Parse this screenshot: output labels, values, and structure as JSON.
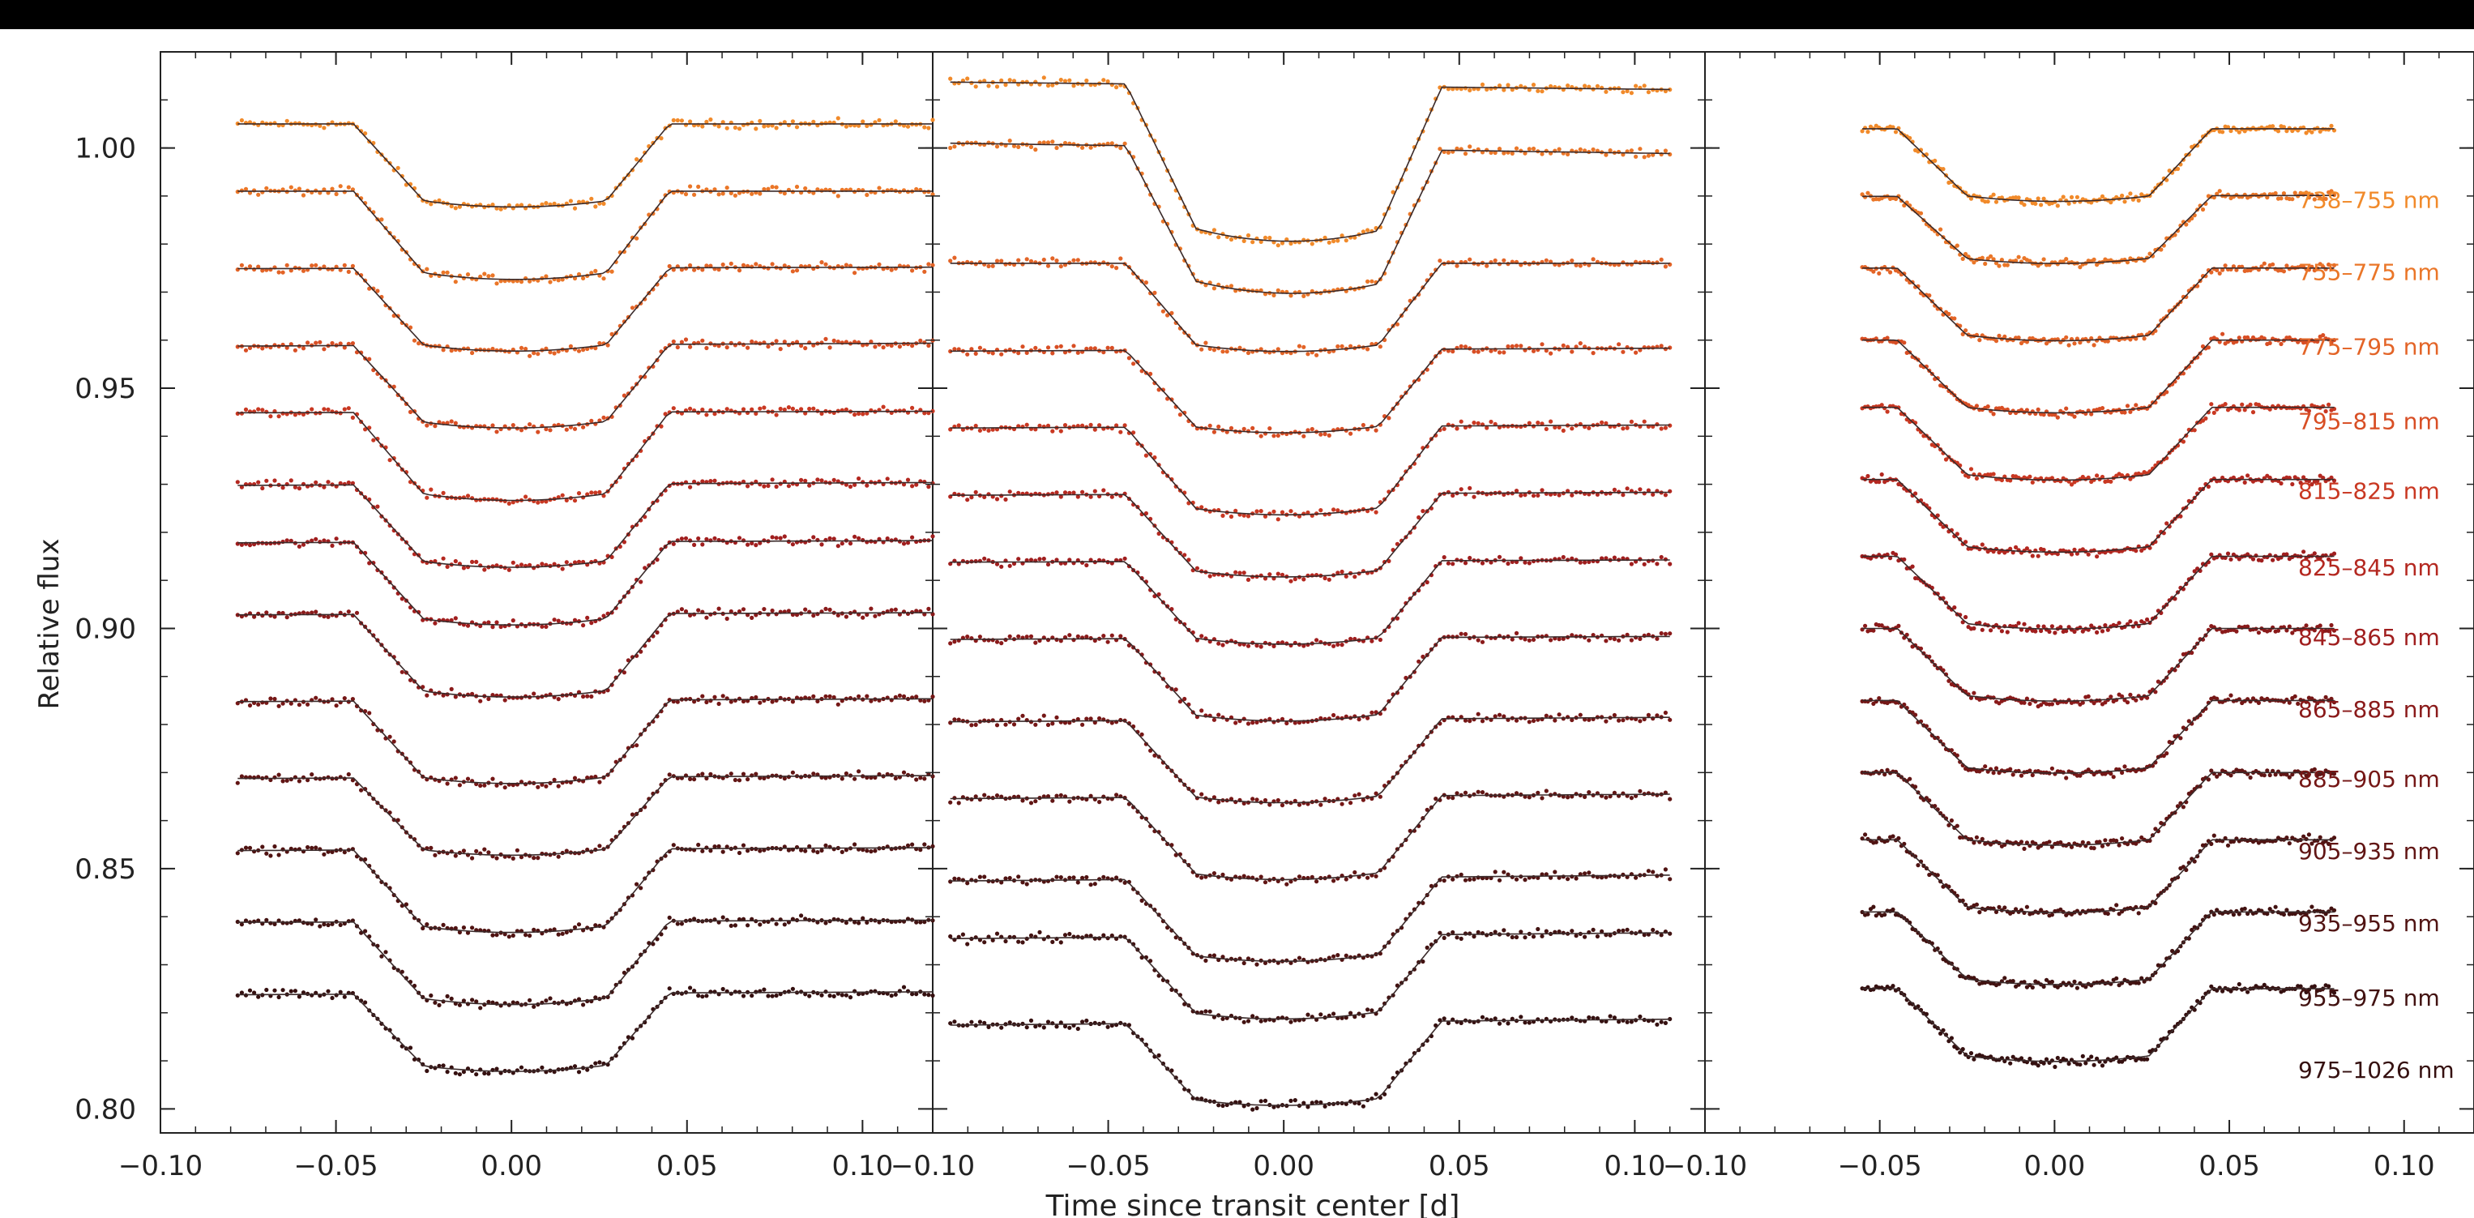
{
  "chart_data": {
    "type": "line",
    "xlabel": "Time since transit center [d]",
    "ylabel": "Relative flux",
    "ylim": [
      0.795,
      1.02
    ],
    "yticks": [
      1.0,
      0.95,
      0.9,
      0.85,
      0.8
    ],
    "ytick_labels": [
      "1.00",
      "0.95",
      "0.90",
      "0.85",
      "0.80"
    ],
    "panels": [
      {
        "xlim": [
          -0.1,
          0.12
        ],
        "xticks": [
          -0.1,
          -0.05,
          0.0,
          0.05,
          0.1
        ],
        "xtick_labels": [
          "−0.10",
          "−0.05",
          "0.00",
          "0.05",
          "0.10"
        ],
        "x_range": [
          -0.078,
          0.12
        ],
        "ingress": [
          -0.045,
          -0.025
        ],
        "egress": [
          0.027,
          0.045
        ],
        "baselines": [
          1.005,
          0.991,
          0.975,
          0.959,
          0.945,
          0.93,
          0.918,
          0.903,
          0.885,
          0.869,
          0.854,
          0.839,
          0.824
        ],
        "depths": [
          0.016,
          0.017,
          0.016,
          0.016,
          0.017,
          0.016,
          0.016,
          0.016,
          0.016,
          0.015,
          0.016,
          0.016,
          0.015
        ],
        "slopes": [
          0.0,
          0.0,
          0.01,
          0.02,
          0.01,
          0.02,
          0.015,
          0.015,
          0.02,
          0.02,
          0.02,
          0.015,
          0.02
        ]
      },
      {
        "xlim": [
          -0.1,
          0.12
        ],
        "xticks": [
          -0.1,
          -0.05,
          0.0,
          0.05,
          0.1
        ],
        "xtick_labels": [
          "−0.10",
          "−0.05",
          "0.00",
          "0.05",
          "0.10"
        ],
        "x_range": [
          -0.095,
          0.11
        ],
        "ingress": [
          -0.045,
          -0.025
        ],
        "egress": [
          0.027,
          0.045
        ],
        "baselines": [
          1.013,
          1.0,
          0.976,
          0.958,
          0.942,
          0.928,
          0.914,
          0.898,
          0.881,
          0.865,
          0.848,
          0.836,
          0.818
        ],
        "depths": [
          0.03,
          0.028,
          0.017,
          0.016,
          0.017,
          0.016,
          0.016,
          0.016,
          0.016,
          0.016,
          0.016,
          0.016,
          0.016
        ],
        "slopes": [
          -0.05,
          -0.07,
          0.0,
          0.02,
          0.02,
          0.02,
          0.015,
          0.02,
          0.03,
          0.03,
          0.04,
          0.04,
          0.04
        ]
      },
      {
        "xlim": [
          -0.1,
          0.12
        ],
        "xticks": [
          -0.1,
          -0.05,
          0.0,
          0.05,
          0.1
        ],
        "xtick_labels": [
          "−0.10",
          "−0.05",
          "0.00",
          "0.05",
          "0.10"
        ],
        "x_range": [
          -0.055,
          0.08
        ],
        "ingress": [
          -0.045,
          -0.025
        ],
        "egress": [
          0.027,
          0.045
        ],
        "baselines": [
          1.004,
          0.99,
          0.975,
          0.96,
          0.946,
          0.931,
          0.915,
          0.9,
          0.885,
          0.87,
          0.856,
          0.841,
          0.825
        ],
        "depths": [
          0.014,
          0.013,
          0.014,
          0.014,
          0.014,
          0.014,
          0.014,
          0.014,
          0.014,
          0.014,
          0.014,
          0.014,
          0.014
        ],
        "slopes": [
          0.0,
          0.01,
          0.0,
          0.0,
          0.0,
          0.0,
          0.0,
          0.0,
          0.0,
          0.0,
          0.0,
          0.0,
          0.0
        ]
      }
    ],
    "wavelength_bands": [
      "738–755 nm",
      "755–775 nm",
      "775–795 nm",
      "795–815 nm",
      "815–825 nm",
      "825–845 nm",
      "845–865 nm",
      "865–885 nm",
      "885–905 nm",
      "905–935 nm",
      "935–955 nm",
      "955–975 nm",
      "975–1026 nm"
    ],
    "band_colors": [
      "#f18a2a",
      "#ea7628",
      "#e36427",
      "#d84e24",
      "#c93822",
      "#b42820",
      "#a01e1e",
      "#8a1a1a",
      "#751716",
      "#611514",
      "#501312",
      "#421211",
      "#351010"
    ],
    "band_label_flux": [
      0.9875,
      0.9725,
      0.957,
      0.9415,
      0.927,
      0.911,
      0.8965,
      0.8815,
      0.867,
      0.852,
      0.837,
      0.8215,
      0.8065
    ],
    "model_color": "#3a2a2a",
    "grid": false,
    "legend": "right"
  }
}
